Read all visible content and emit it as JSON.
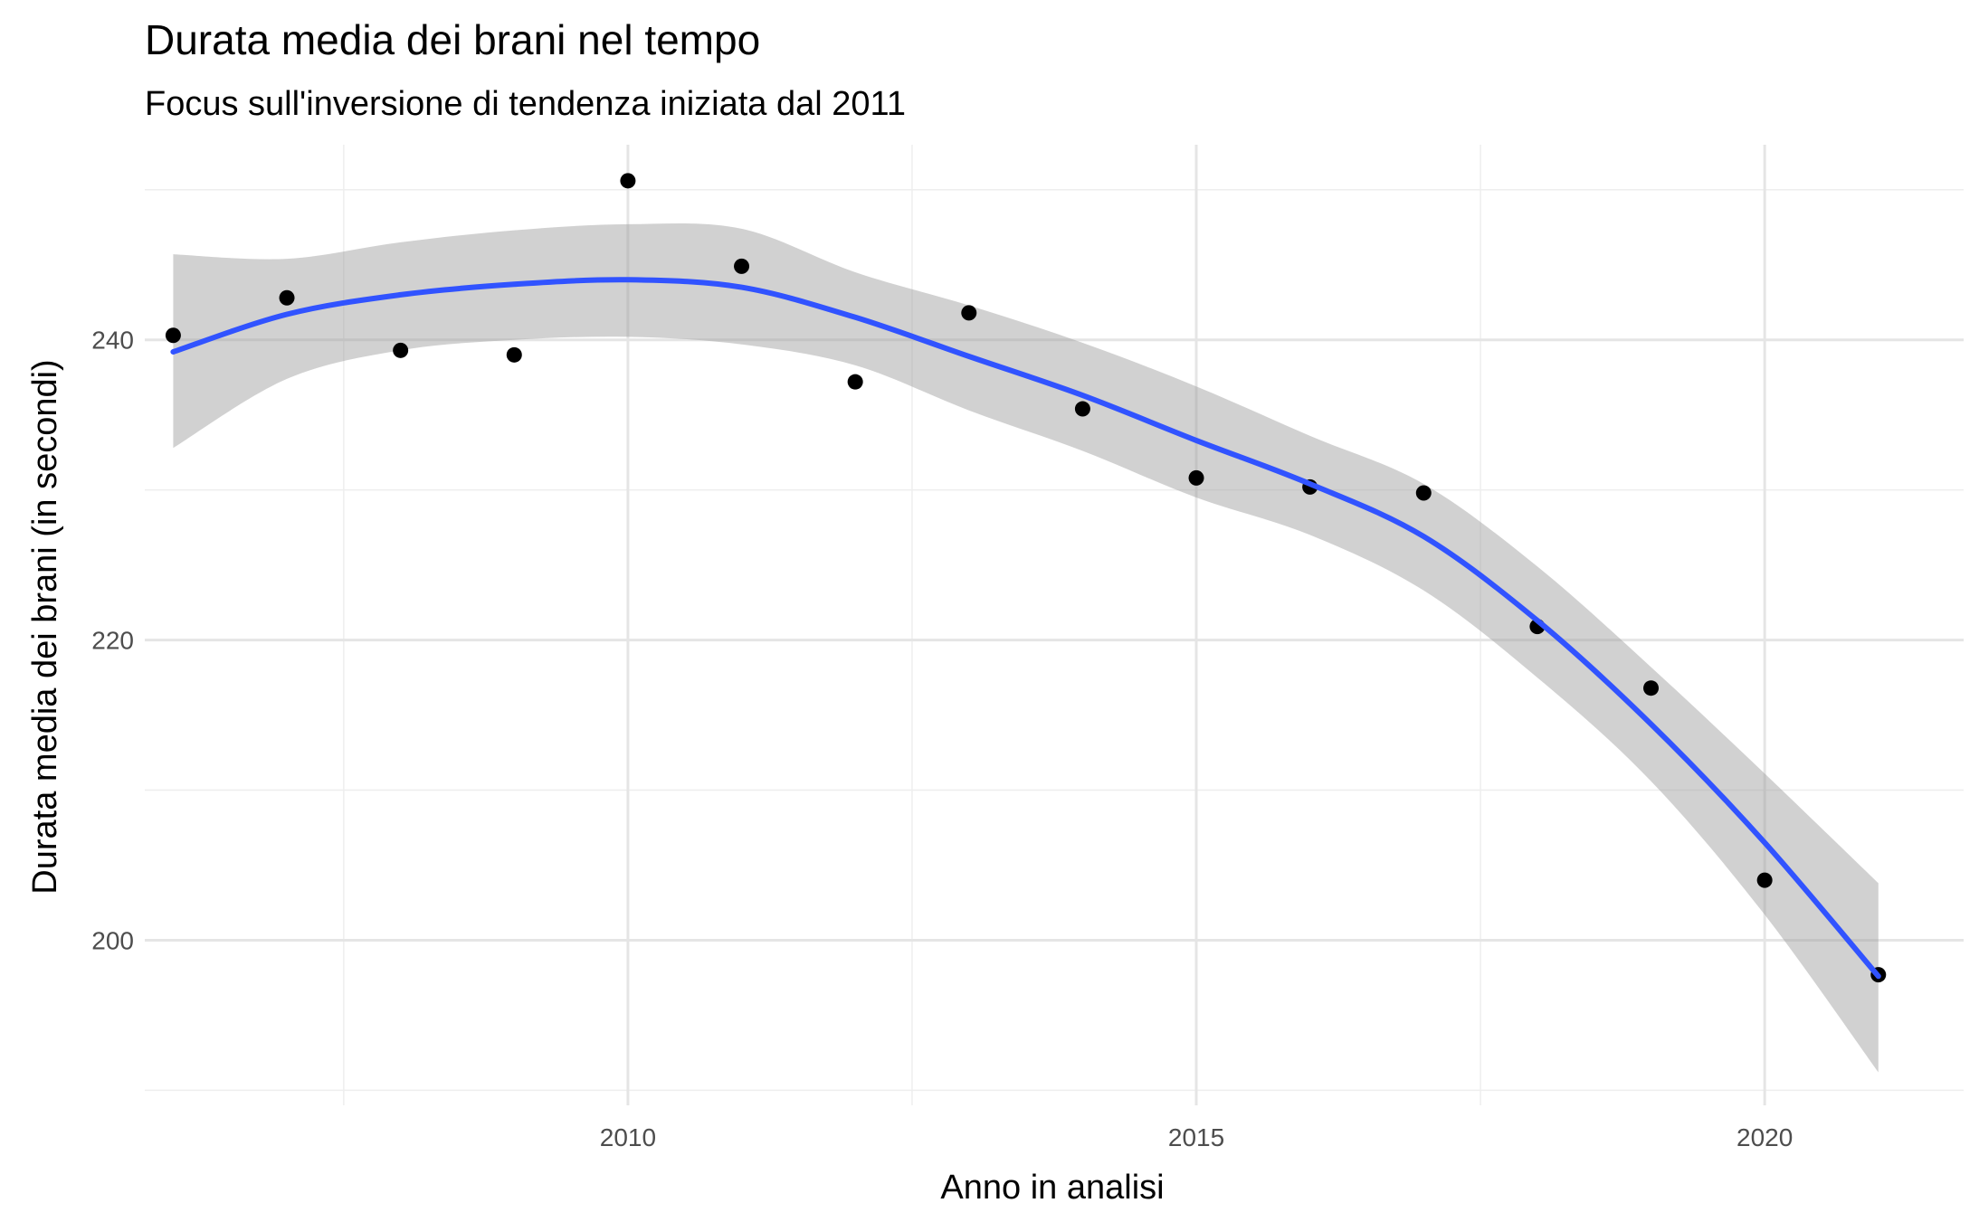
{
  "chart_data": {
    "type": "scatter",
    "title": "Durata media dei brani nel tempo",
    "subtitle": "Focus sull'inversione di tendenza iniziata dal 2011",
    "xlabel": "Anno in analisi",
    "ylabel": "Durata media dei brani (in secondi)",
    "xlim": [
      2005.75,
      2021.75
    ],
    "ylim": [
      189,
      253
    ],
    "x_ticks": [
      2010,
      2015,
      2020
    ],
    "y_ticks": [
      200,
      220,
      240
    ],
    "grid": true,
    "legend": "none",
    "points": [
      {
        "x": 2006,
        "y": 240.3
      },
      {
        "x": 2007,
        "y": 242.8
      },
      {
        "x": 2008,
        "y": 239.3
      },
      {
        "x": 2009,
        "y": 239.0
      },
      {
        "x": 2010,
        "y": 250.6
      },
      {
        "x": 2011,
        "y": 244.9
      },
      {
        "x": 2012,
        "y": 237.2
      },
      {
        "x": 2013,
        "y": 241.8
      },
      {
        "x": 2014,
        "y": 235.4
      },
      {
        "x": 2015,
        "y": 230.8
      },
      {
        "x": 2016,
        "y": 230.2
      },
      {
        "x": 2017,
        "y": 229.8
      },
      {
        "x": 2018,
        "y": 220.9
      },
      {
        "x": 2019,
        "y": 216.8
      },
      {
        "x": 2020,
        "y": 204.0
      },
      {
        "x": 2021,
        "y": 197.7
      }
    ],
    "smooth": {
      "x": [
        2006,
        2007,
        2008,
        2009,
        2010,
        2011,
        2012,
        2013,
        2014,
        2015,
        2016,
        2017,
        2018,
        2019,
        2020,
        2021
      ],
      "y": [
        239.2,
        241.7,
        243.0,
        243.7,
        244.0,
        243.5,
        241.5,
        238.9,
        236.3,
        233.3,
        230.4,
        226.9,
        221.3,
        214.4,
        206.5,
        197.6
      ],
      "lower": [
        232.8,
        237.4,
        239.3,
        240.0,
        240.2,
        239.7,
        238.3,
        235.3,
        232.6,
        229.5,
        227.0,
        223.3,
        217.5,
        210.6,
        201.7,
        191.2
      ],
      "upper": [
        245.7,
        245.4,
        246.5,
        247.3,
        247.7,
        247.4,
        244.5,
        242.3,
        239.8,
        236.9,
        233.6,
        230.4,
        224.9,
        218.2,
        211.1,
        203.8
      ]
    },
    "colors": {
      "points": "#000000",
      "smooth_line": "#3153ff",
      "ribbon": "#999999",
      "grid": "#e5e5e5"
    }
  }
}
